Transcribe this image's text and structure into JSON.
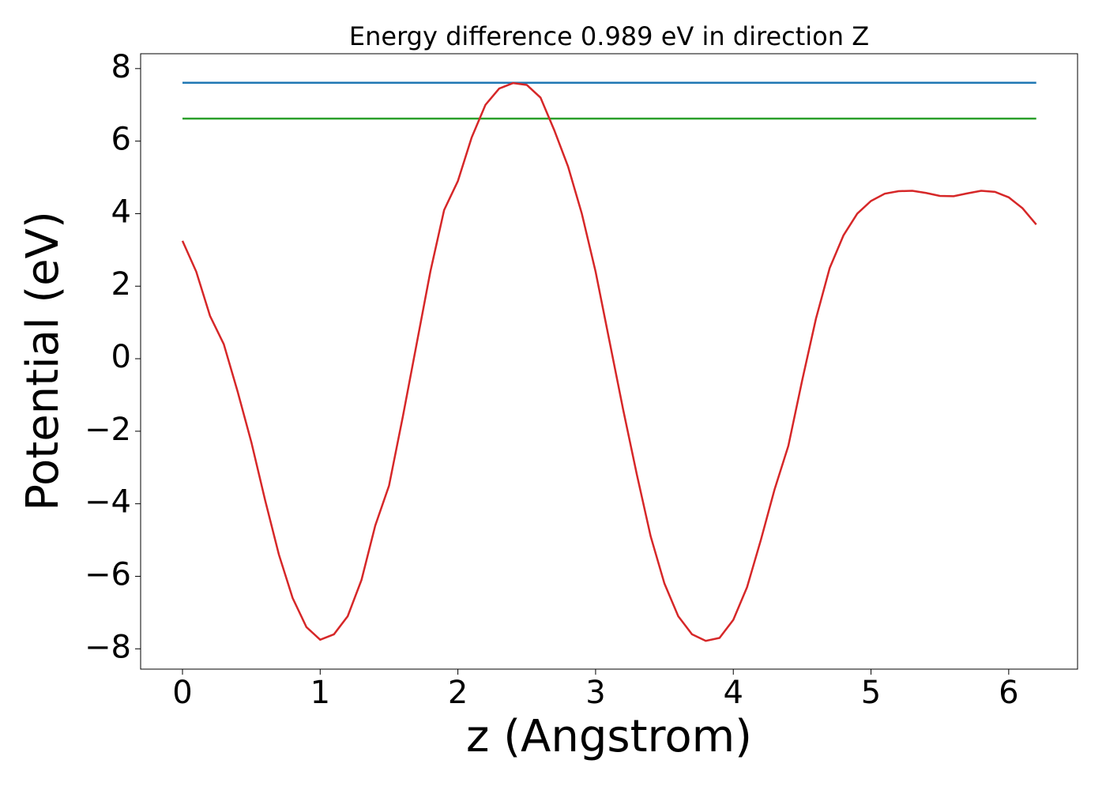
{
  "chart_data": {
    "type": "line",
    "title": "Energy difference 0.989 eV in direction Z",
    "xlabel": "z (Angstrom)",
    "ylabel": "Potential (eV)",
    "xlim": [
      -0.304,
      6.5
    ],
    "ylim": [
      -8.56,
      8.41
    ],
    "xticks": [
      0,
      1,
      2,
      3,
      4,
      5,
      6
    ],
    "yticks": [
      {
        "value": -8,
        "label": "−8"
      },
      {
        "value": -6,
        "label": "−6"
      },
      {
        "value": -4,
        "label": "−4"
      },
      {
        "value": -2,
        "label": "−2"
      },
      0,
      2,
      4,
      6,
      8
    ],
    "series": [
      {
        "color": "#1f77b4",
        "x": [
          0,
          6.2
        ],
        "values": [
          7.61,
          7.61
        ]
      },
      {
        "color": "#2ca02c",
        "x": [
          0,
          6.2
        ],
        "values": [
          6.62,
          6.62
        ]
      },
      {
        "color": "#d62728",
        "x": [
          0,
          0.1,
          0.2,
          0.3,
          0.4,
          0.5,
          0.6,
          0.7,
          0.8,
          0.9,
          1.0,
          1.1,
          1.2,
          1.3,
          1.4,
          1.5,
          1.6,
          1.7,
          1.8,
          1.9,
          2.0,
          2.1,
          2.2,
          2.3,
          2.4,
          2.5,
          2.6,
          2.7,
          2.8,
          2.9,
          3.0,
          3.1,
          3.2,
          3.3,
          3.4,
          3.5,
          3.6,
          3.7,
          3.8,
          3.9,
          4.0,
          4.1,
          4.2,
          4.3,
          4.4,
          4.5,
          4.6,
          4.7,
          4.8,
          4.9,
          5.0,
          5.1,
          5.2,
          5.3,
          5.4,
          5.5,
          5.6,
          5.7,
          5.8,
          5.9,
          6.0,
          6.1,
          6.2
        ],
        "values": [
          3.25,
          2.4,
          1.18,
          0.4,
          -0.9,
          -2.3,
          -3.9,
          -5.4,
          -6.6,
          -7.4,
          -7.75,
          -7.6,
          -7.1,
          -6.1,
          -4.6,
          -3.5,
          -1.6,
          0.4,
          2.4,
          4.1,
          4.9,
          6.1,
          7.0,
          7.45,
          7.6,
          7.55,
          7.2,
          6.3,
          5.3,
          4.0,
          2.4,
          0.5,
          -1.4,
          -3.2,
          -4.9,
          -6.2,
          -7.1,
          -7.6,
          -7.78,
          -7.7,
          -7.2,
          -6.3,
          -5.0,
          -3.6,
          -2.4,
          -0.6,
          1.1,
          2.5,
          3.4,
          4.0,
          4.35,
          4.55,
          4.62,
          4.63,
          4.57,
          4.49,
          4.48,
          4.56,
          4.63,
          4.6,
          4.45,
          4.15,
          3.7
        ]
      }
    ]
  }
}
